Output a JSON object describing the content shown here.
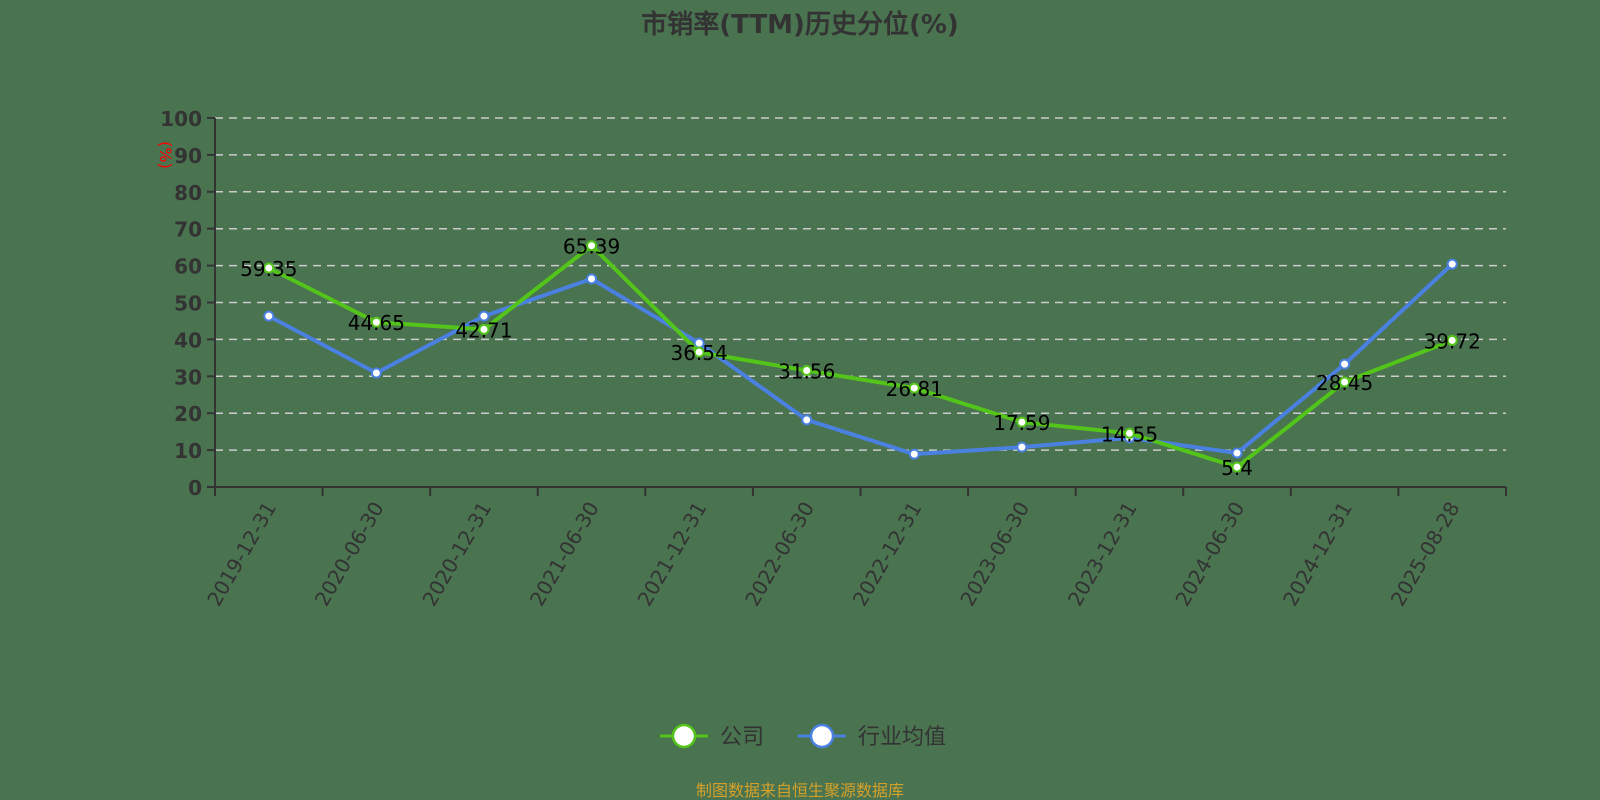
{
  "chart_data": {
    "type": "line",
    "title": "市销率(TTM)历史分位(%)",
    "xlabel": "",
    "ylabel": "(%)",
    "ylim": [
      0,
      100
    ],
    "yticks": [
      0,
      10,
      20,
      30,
      40,
      50,
      60,
      70,
      80,
      90,
      100
    ],
    "grid": true,
    "legend_position": "bottom",
    "categories": [
      "2019-12-31",
      "2020-06-30",
      "2020-12-31",
      "2021-06-30",
      "2021-12-31",
      "2022-06-30",
      "2022-12-31",
      "2023-06-30",
      "2023-12-31",
      "2024-06-30",
      "2024-12-31",
      "2025-08-28"
    ],
    "series": [
      {
        "name": "公司",
        "color": "#52c41a",
        "labels": true,
        "values": [
          59.35,
          44.65,
          42.71,
          65.39,
          36.54,
          31.56,
          26.81,
          17.59,
          14.55,
          5.4,
          28.45,
          39.72
        ]
      },
      {
        "name": "行业均值",
        "color": "#4a80e0",
        "labels": false,
        "values": [
          46.3,
          30.9,
          46.3,
          56.4,
          39.0,
          18.2,
          8.9,
          10.8,
          13.3,
          9.2,
          33.3,
          60.4
        ]
      }
    ]
  },
  "source_note": "制图数据来自恒生聚源数据库",
  "colors": {
    "background": "#4a7350",
    "axis": "#333333",
    "grid": "#cccccc",
    "ylabel": "#ff0000",
    "source": "#d4a12a"
  }
}
